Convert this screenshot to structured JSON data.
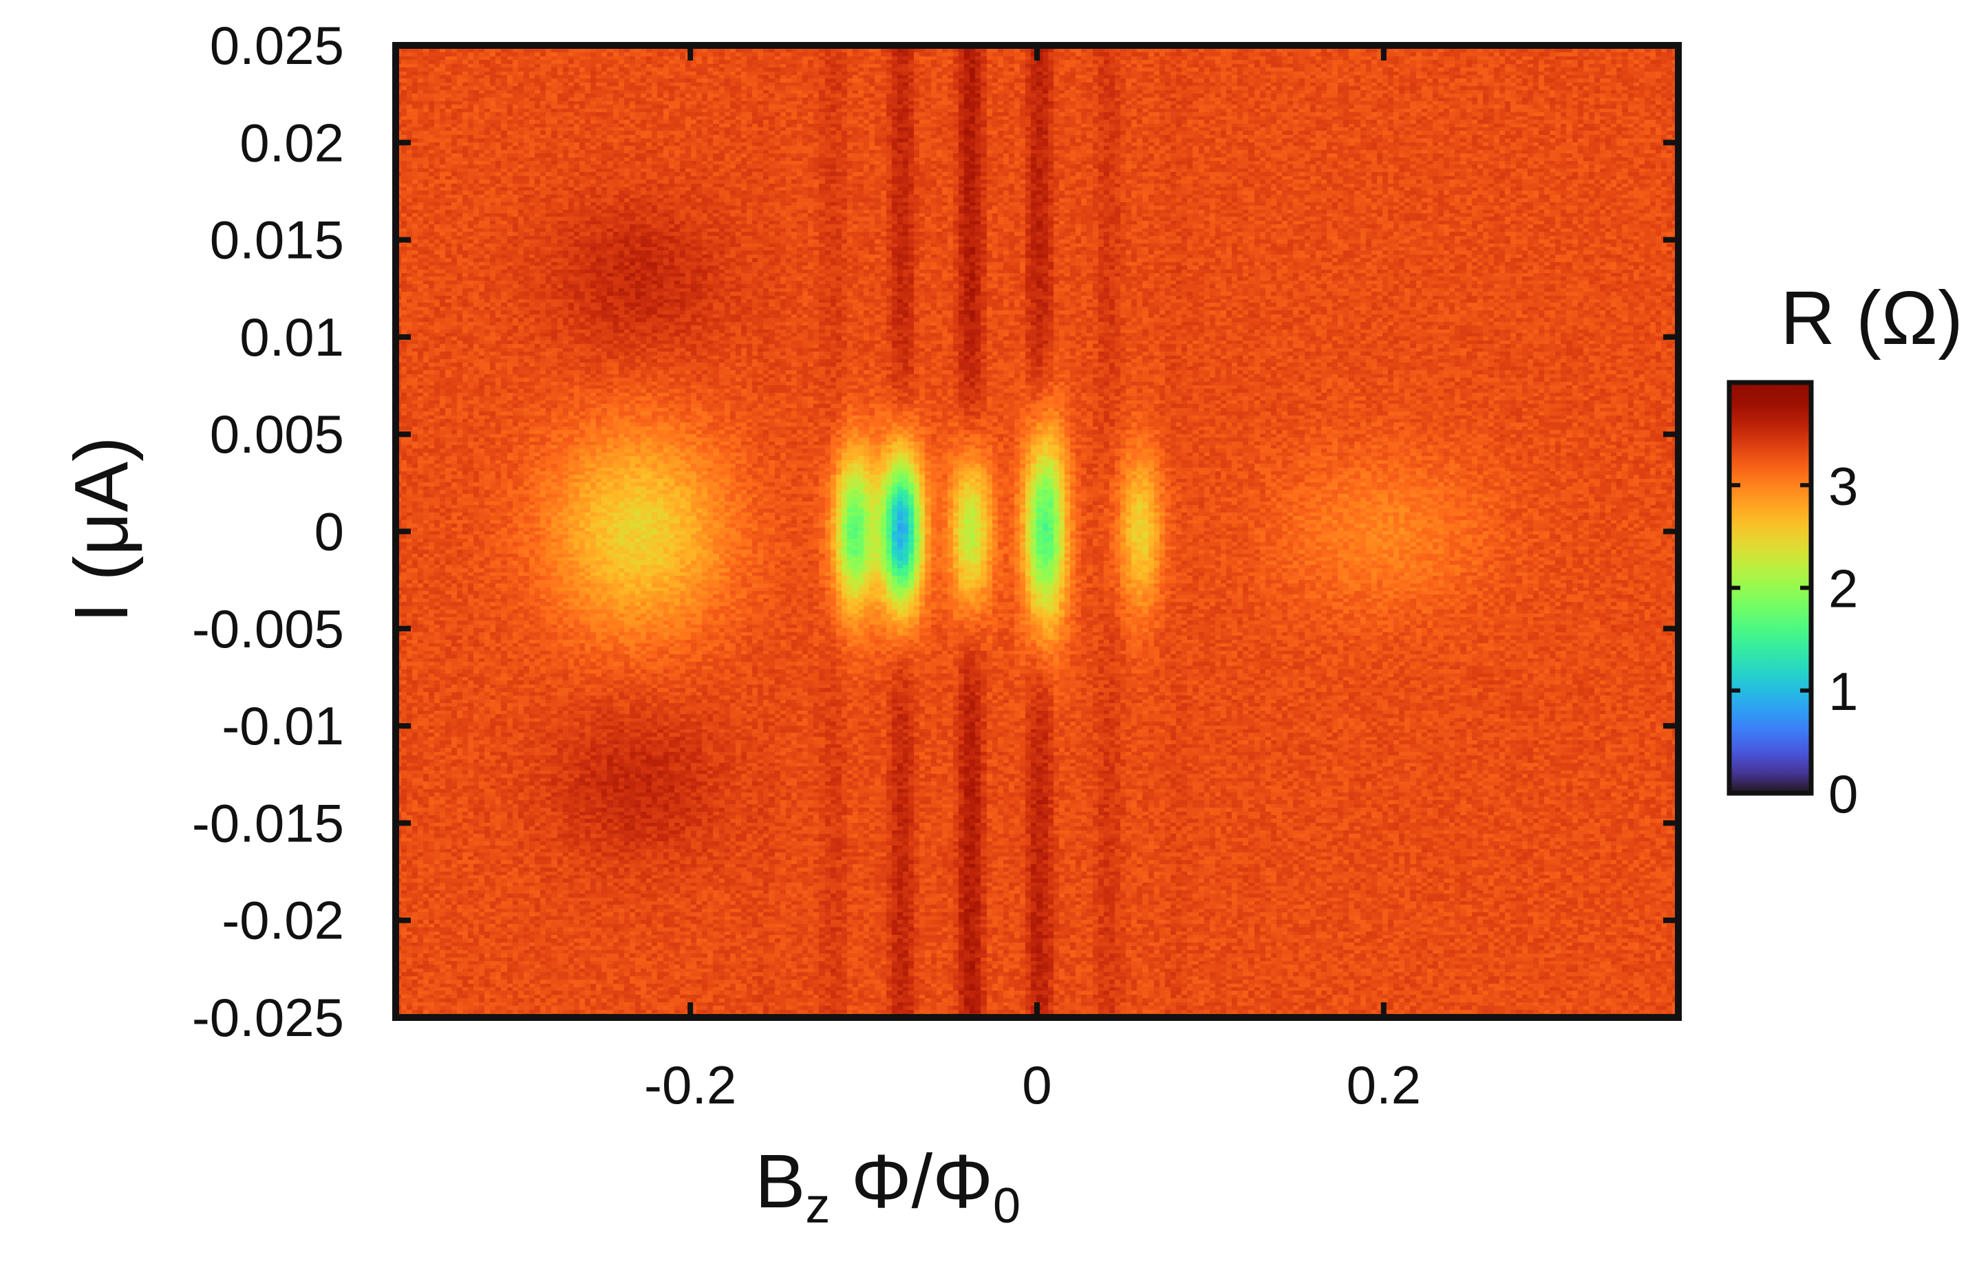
{
  "chart_data": {
    "type": "heatmap",
    "title": "",
    "xlabel": {
      "main": "B",
      "sub_z": "z",
      "mid": " Φ/Φ",
      "sub_0": "0"
    },
    "ylabel": "I (μA)",
    "xlim": [
      -0.37,
      0.37
    ],
    "ylim": [
      -0.025,
      0.025
    ],
    "x_ticks": [
      -0.2,
      0,
      0.2
    ],
    "x_tick_labels": [
      "-0.2",
      "0",
      "0.2"
    ],
    "y_ticks": [
      0.025,
      0.02,
      0.015,
      0.01,
      0.005,
      0,
      -0.005,
      -0.01,
      -0.015,
      -0.02,
      -0.025
    ],
    "y_tick_labels": [
      "0.025",
      "0.02",
      "0.015",
      "0.01",
      "0.005",
      "0",
      "-0.005",
      "-0.01",
      "-0.015",
      "-0.02",
      "-0.025"
    ],
    "colorbar": {
      "label": "R (Ω)",
      "range": [
        0,
        4
      ],
      "ticks": [
        0,
        1,
        2,
        3
      ],
      "tick_labels": [
        "0",
        "1",
        "2",
        "3"
      ],
      "colormap": "turbo"
    },
    "background_resistance": 3.3,
    "features": [
      {
        "name": "left-lobe",
        "x_center": -0.23,
        "x_halfwidth": 0.05,
        "r_min": 2.5,
        "i_halfwidth": 0.005
      },
      {
        "name": "central-stripe-1",
        "x_center": -0.105,
        "r_min": 1.7,
        "i_halfwidth": 0.004
      },
      {
        "name": "central-stripe-2",
        "x_center": -0.078,
        "r_min": 0.9,
        "i_halfwidth": 0.004
      },
      {
        "name": "central-stripe-3",
        "x_center": -0.038,
        "r_min": 2.2,
        "i_halfwidth": 0.004
      },
      {
        "name": "central-stripe-4",
        "x_center": 0.005,
        "r_min": 1.6,
        "i_halfwidth": 0.005
      },
      {
        "name": "central-stripe-5",
        "x_center": 0.06,
        "r_min": 2.5,
        "i_halfwidth": 0.004
      },
      {
        "name": "right-lobe",
        "x_center": 0.2,
        "x_halfwidth": 0.06,
        "r_min": 3.0,
        "i_halfwidth": 0.004
      }
    ]
  },
  "colors": {
    "frame": "#111111",
    "text": "#111111",
    "background": "#ffffff"
  }
}
